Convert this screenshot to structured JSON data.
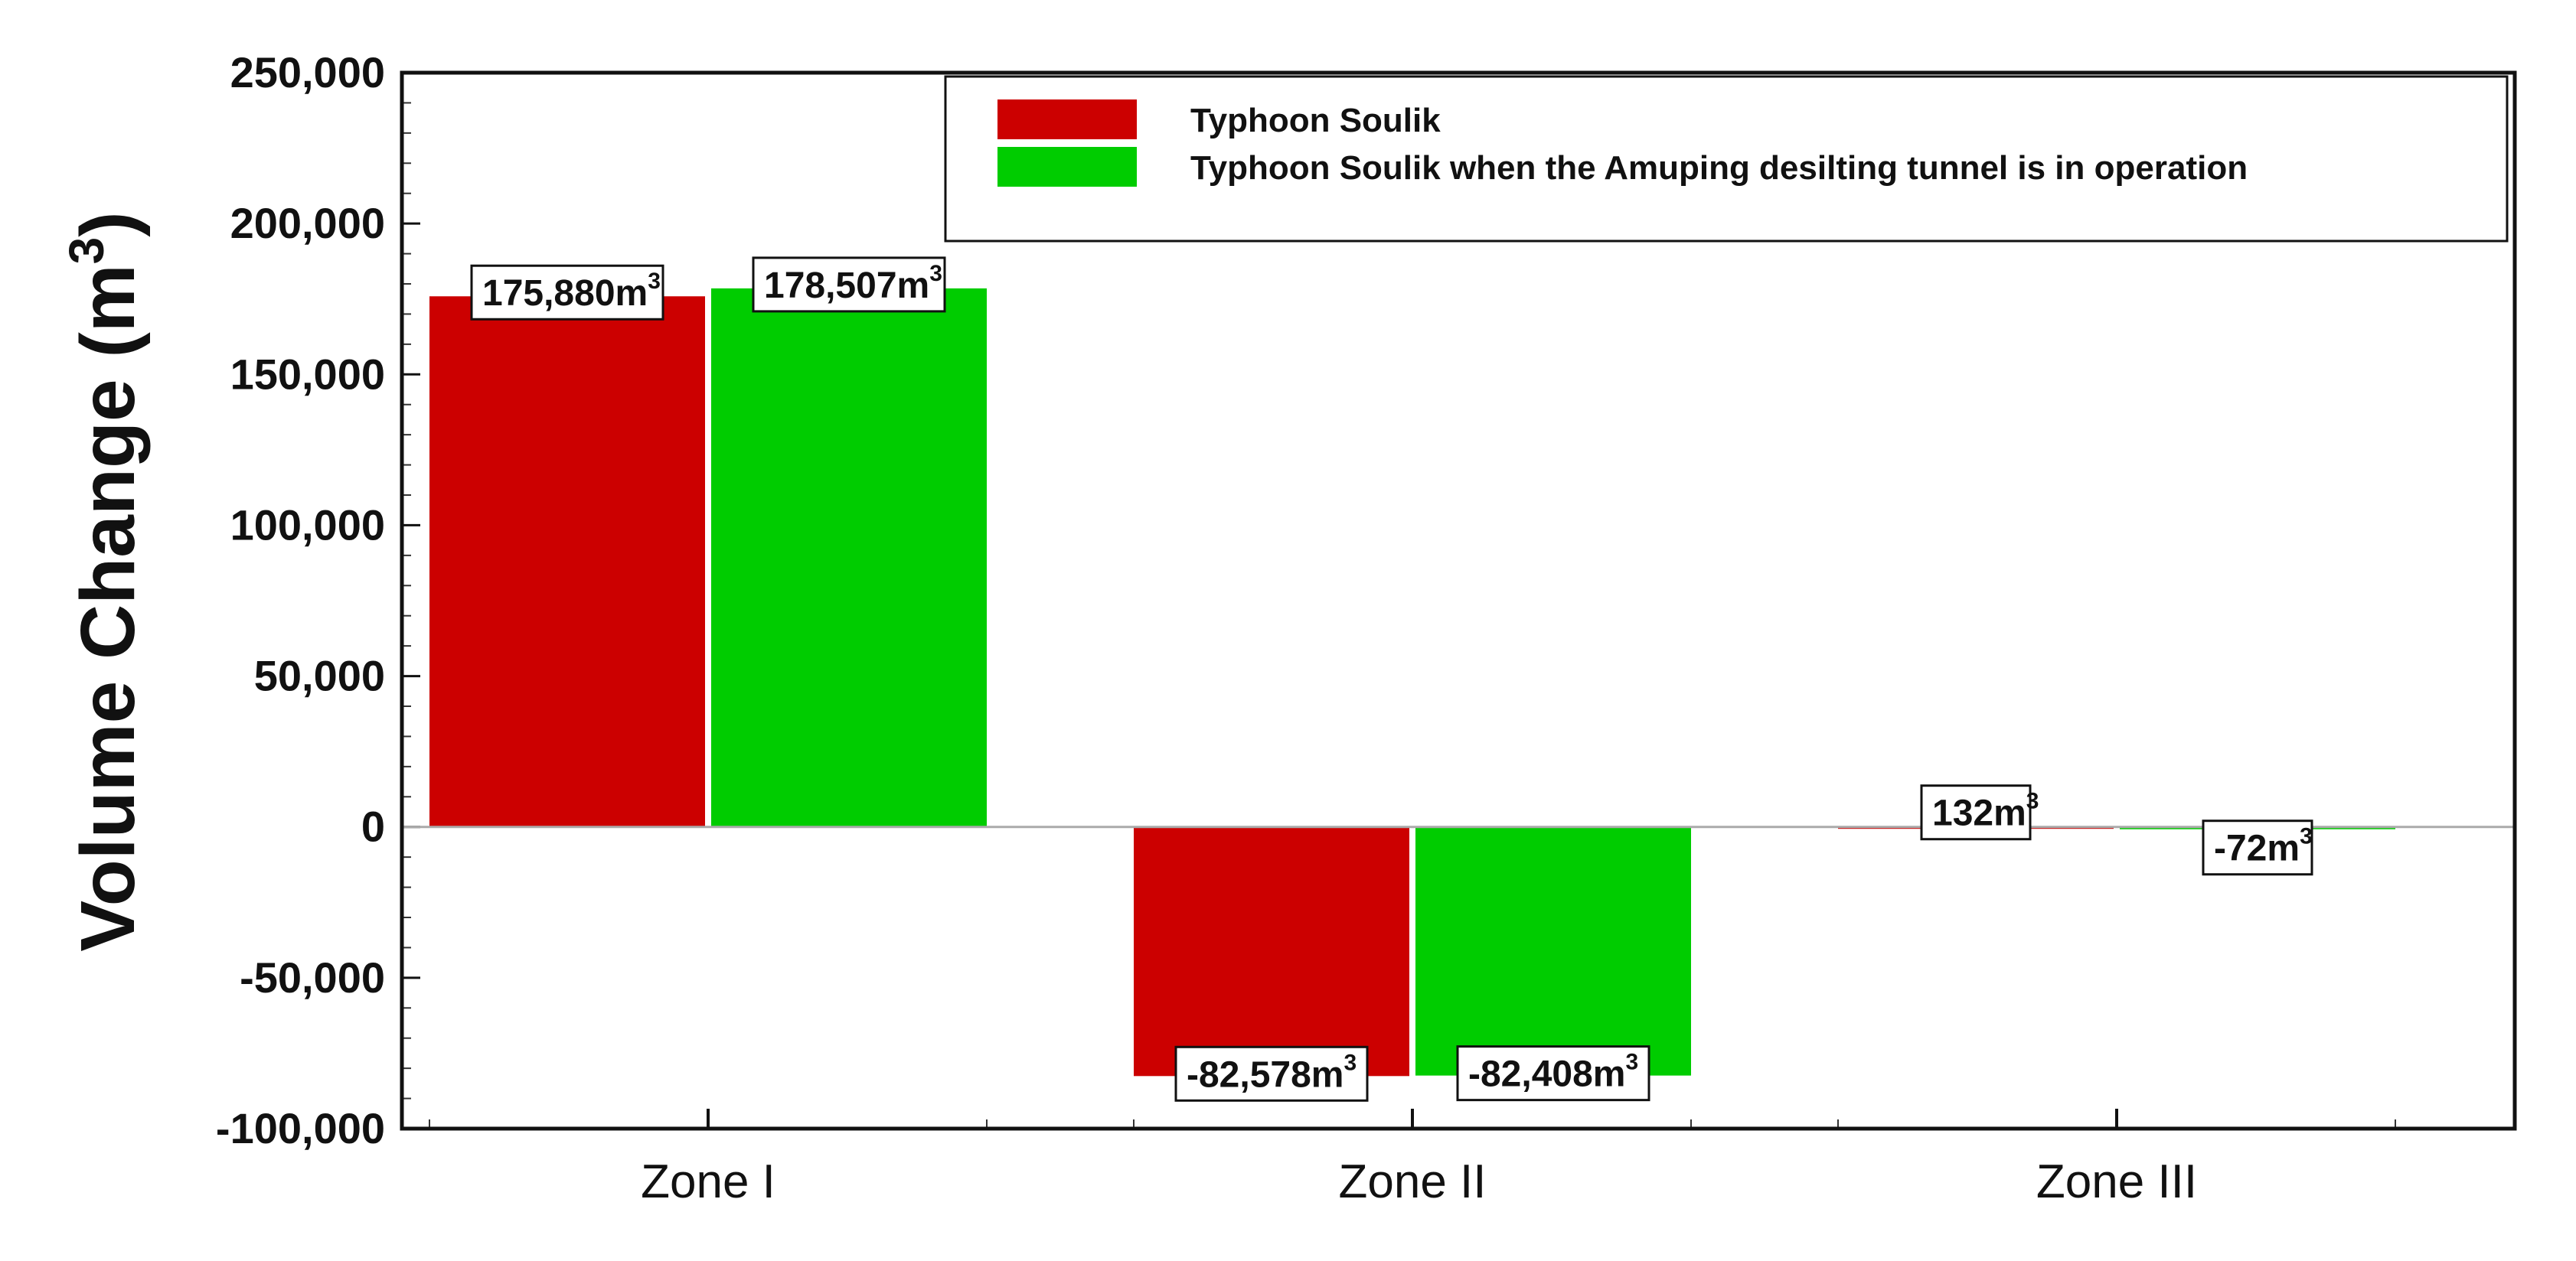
{
  "chart_data": {
    "type": "bar",
    "title": "",
    "xlabel": "",
    "ylabel": "Volume Change (m",
    "ylabel_sup": "3",
    "ylabel_close": ")",
    "ylim": [
      -100000,
      250000
    ],
    "yticks": [
      -100000,
      -50000,
      0,
      50000,
      100000,
      150000,
      200000,
      250000
    ],
    "ytick_labels": [
      "-100,000",
      "-50,000",
      "0",
      "50,000",
      "100,000",
      "150,000",
      "200,000",
      "250,000"
    ],
    "categories": [
      "Zone I",
      "Zone II",
      "Zone III"
    ],
    "series": [
      {
        "name": "Typhoon Soulik",
        "color": "#cc0000",
        "values": [
          175880,
          -82578,
          132
        ],
        "labels": [
          "175,880m",
          "-82,578m",
          "132m"
        ]
      },
      {
        "name": "Typhoon Soulik when the Amuping desilting tunnel is in operation",
        "color": "#00cc00",
        "values": [
          178507,
          -82408,
          -72
        ],
        "labels": [
          "178,507m",
          "-82,408m",
          "-72m"
        ]
      }
    ],
    "label_sup": "3",
    "legend_position": "top-right",
    "grid": false
  }
}
